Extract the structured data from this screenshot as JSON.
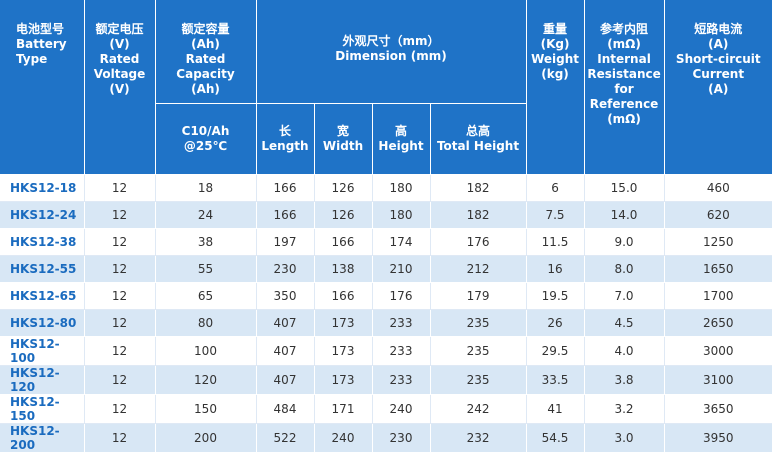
{
  "headers": {
    "battery_type": "电池型号\nBattery\nType",
    "voltage": "额定电压\n(V)\nRated\nVoltage\n(V)",
    "capacity": "额定容量\n(Ah)\nRated\nCapacity\n(Ah)",
    "capacity_sub": "C10/Ah\n@25℃",
    "dimension": "外观尺寸（mm）\nDimension (mm)",
    "length": "长\nLength",
    "width": "宽\nWidth",
    "height": "高\nHeight",
    "total_height": "总高\nTotal Height",
    "weight": "重量\n(Kg)\nWeight\n(kg)",
    "resistance": "参考内阻\n(mΩ)\nInternal\nResistance\nfor\nReference\n(mΩ)",
    "short_circuit": "短路电流\n(A)\nShort-circuit\nCurrent\n(A)"
  },
  "rows": [
    {
      "model": "HKS12-18",
      "voltage": "12",
      "capacity": "18",
      "length": "166",
      "width": "126",
      "height": "180",
      "total_height": "182",
      "weight": "6",
      "resistance": "15.0",
      "current": "460"
    },
    {
      "model": "HKS12-24",
      "voltage": "12",
      "capacity": "24",
      "length": "166",
      "width": "126",
      "height": "180",
      "total_height": "182",
      "weight": "7.5",
      "resistance": "14.0",
      "current": "620"
    },
    {
      "model": "HKS12-38",
      "voltage": "12",
      "capacity": "38",
      "length": "197",
      "width": "166",
      "height": "174",
      "total_height": "176",
      "weight": "11.5",
      "resistance": "9.0",
      "current": "1250"
    },
    {
      "model": "HKS12-55",
      "voltage": "12",
      "capacity": "55",
      "length": "230",
      "width": "138",
      "height": "210",
      "total_height": "212",
      "weight": "16",
      "resistance": "8.0",
      "current": "1650"
    },
    {
      "model": "HKS12-65",
      "voltage": "12",
      "capacity": "65",
      "length": "350",
      "width": "166",
      "height": "176",
      "total_height": "179",
      "weight": "19.5",
      "resistance": "7.0",
      "current": "1700"
    },
    {
      "model": "HKS12-80",
      "voltage": "12",
      "capacity": "80",
      "length": "407",
      "width": "173",
      "height": "233",
      "total_height": "235",
      "weight": "26",
      "resistance": "4.5",
      "current": "2650"
    },
    {
      "model": "HKS12-100",
      "voltage": "12",
      "capacity": "100",
      "length": "407",
      "width": "173",
      "height": "233",
      "total_height": "235",
      "weight": "29.5",
      "resistance": "4.0",
      "current": "3000"
    },
    {
      "model": "HKS12-120",
      "voltage": "12",
      "capacity": "120",
      "length": "407",
      "width": "173",
      "height": "233",
      "total_height": "235",
      "weight": "33.5",
      "resistance": "3.8",
      "current": "3100"
    },
    {
      "model": "HKS12-150",
      "voltage": "12",
      "capacity": "150",
      "length": "484",
      "width": "171",
      "height": "240",
      "total_height": "242",
      "weight": "41",
      "resistance": "3.2",
      "current": "3650"
    },
    {
      "model": "HKS12-200",
      "voltage": "12",
      "capacity": "200",
      "length": "522",
      "width": "240",
      "height": "230",
      "total_height": "232",
      "weight": "54.5",
      "resistance": "3.0",
      "current": "3950"
    }
  ]
}
